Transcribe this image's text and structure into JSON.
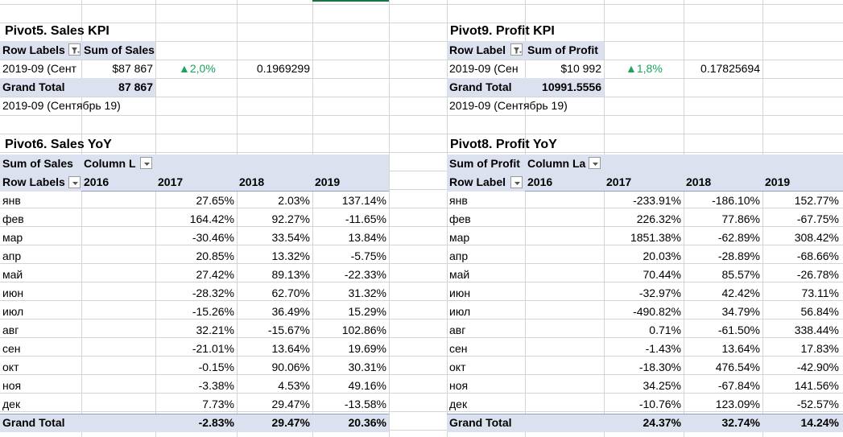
{
  "sales_kpi": {
    "title": "Pivot5. Sales KPI",
    "header_row_labels": "Row Labels",
    "header_value": "Sum of Sales",
    "row_label": "2019-09 (Сент",
    "row_value": "$87 867",
    "change": "▲2,0%",
    "ratio": "0.1969299",
    "grand_total_label": "Grand Total",
    "grand_total_value": "87 867",
    "period_note": "2019-09 (Сентябрь 19)"
  },
  "profit_kpi": {
    "title": "Pivot9. Profit KPI",
    "header_row_labels": "Row Label",
    "header_value": "Sum of Profit",
    "row_label": "2019-09 (Сен",
    "row_value": "$10 992",
    "change": "▲1,8%",
    "ratio": "0.17825694",
    "grand_total_label": "Grand Total",
    "grand_total_value": "10991.5556",
    "period_note": "2019-09 (Сентябрь 19)"
  },
  "sales_yoy": {
    "title": "Pivot6. Sales YoY",
    "values_label": "Sum of Sales",
    "column_labels": "Column L",
    "row_labels": "Row Labels",
    "years": [
      "2016",
      "2017",
      "2018",
      "2019"
    ],
    "rows": [
      {
        "month": "янв",
        "v2017": "27.65%",
        "v2018": "2.03%",
        "v2019": "137.14%"
      },
      {
        "month": "фев",
        "v2017": "164.42%",
        "v2018": "92.27%",
        "v2019": "-11.65%"
      },
      {
        "month": "мар",
        "v2017": "-30.46%",
        "v2018": "33.54%",
        "v2019": "13.84%"
      },
      {
        "month": "апр",
        "v2017": "20.85%",
        "v2018": "13.32%",
        "v2019": "-5.75%"
      },
      {
        "month": "май",
        "v2017": "27.42%",
        "v2018": "89.13%",
        "v2019": "-22.33%"
      },
      {
        "month": "июн",
        "v2017": "-28.32%",
        "v2018": "62.70%",
        "v2019": "31.32%"
      },
      {
        "month": "июл",
        "v2017": "-15.26%",
        "v2018": "36.49%",
        "v2019": "15.29%"
      },
      {
        "month": "авг",
        "v2017": "32.21%",
        "v2018": "-15.67%",
        "v2019": "102.86%"
      },
      {
        "month": "сен",
        "v2017": "-21.01%",
        "v2018": "13.64%",
        "v2019": "19.69%"
      },
      {
        "month": "окт",
        "v2017": "-0.15%",
        "v2018": "90.06%",
        "v2019": "30.31%"
      },
      {
        "month": "ноя",
        "v2017": "-3.38%",
        "v2018": "4.53%",
        "v2019": "49.16%"
      },
      {
        "month": "дек",
        "v2017": "7.73%",
        "v2018": "29.47%",
        "v2019": "-13.58%"
      }
    ],
    "grand_total": {
      "label": "Grand Total",
      "v2017": "-2.83%",
      "v2018": "29.47%",
      "v2019": "20.36%"
    }
  },
  "profit_yoy": {
    "title": "Pivot8. Profit YoY",
    "values_label": "Sum of Profit",
    "column_labels": "Column La",
    "row_labels": "Row Label",
    "years": [
      "2016",
      "2017",
      "2018",
      "2019"
    ],
    "rows": [
      {
        "month": "янв",
        "v2017": "-233.91%",
        "v2018": "-186.10%",
        "v2019": "152.77%"
      },
      {
        "month": "фев",
        "v2017": "226.32%",
        "v2018": "77.86%",
        "v2019": "-67.75%"
      },
      {
        "month": "мар",
        "v2017": "1851.38%",
        "v2018": "-62.89%",
        "v2019": "308.42%"
      },
      {
        "month": "апр",
        "v2017": "20.03%",
        "v2018": "-28.89%",
        "v2019": "-68.66%"
      },
      {
        "month": "май",
        "v2017": "70.44%",
        "v2018": "85.57%",
        "v2019": "-26.78%"
      },
      {
        "month": "июн",
        "v2017": "-32.97%",
        "v2018": "42.42%",
        "v2019": "73.11%"
      },
      {
        "month": "июл",
        "v2017": "-490.82%",
        "v2018": "34.79%",
        "v2019": "56.84%"
      },
      {
        "month": "авг",
        "v2017": "0.71%",
        "v2018": "-61.50%",
        "v2019": "338.44%"
      },
      {
        "month": "сен",
        "v2017": "-1.43%",
        "v2018": "13.64%",
        "v2019": "17.83%"
      },
      {
        "month": "окт",
        "v2017": "-18.30%",
        "v2018": "476.54%",
        "v2019": "-42.90%"
      },
      {
        "month": "ноя",
        "v2017": "34.25%",
        "v2018": "-67.84%",
        "v2019": "141.56%"
      },
      {
        "month": "дек",
        "v2017": "-10.76%",
        "v2018": "123.09%",
        "v2019": "-52.57%"
      }
    ],
    "grand_total": {
      "label": "Grand Total",
      "v2017": "24.37%",
      "v2018": "32.74%",
      "v2019": "14.24%"
    }
  },
  "colors": {
    "pivot_header": "#dce1ef",
    "positive_indicator": "#1aa35a",
    "gridline": "#d4d4d4",
    "selection": "#1e7145"
  }
}
